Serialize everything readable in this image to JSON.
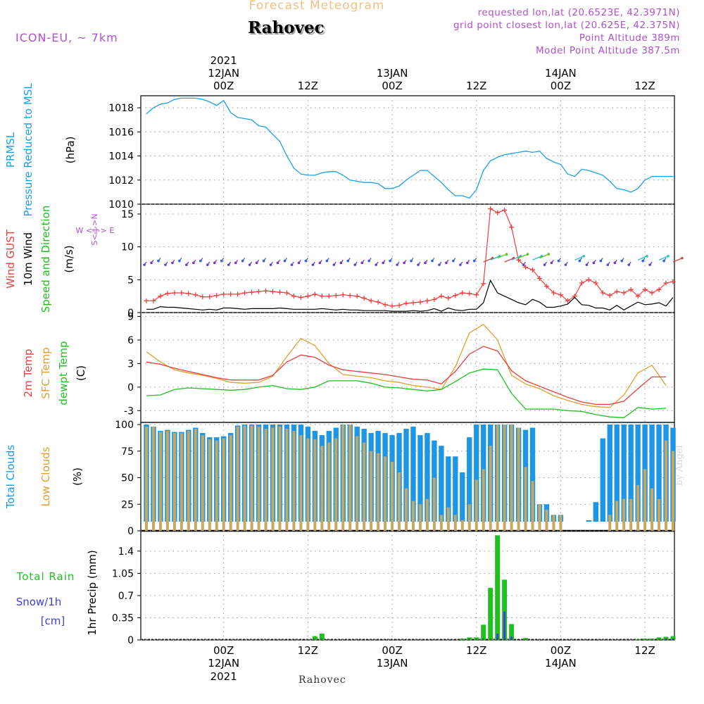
{
  "header": {
    "title": "Forecast Meteogram",
    "location": "Rahovec",
    "model": "ICON-EU, ~ 7km",
    "requested": "requested lon,lat (20.6523E, 42.3971N)",
    "gridpoint": "grid point closest lon,lat (20.625E, 42.375N)",
    "point_alt": "Point Altitude 389m",
    "model_alt": "Model Point Altitude 387.5m",
    "footer_location": "Rahovec",
    "credit": "by Angel"
  },
  "time_axis": {
    "ticks": [
      {
        "hour": 0,
        "label": "00Z",
        "day": "12JAN",
        "year": "2021"
      },
      {
        "hour": 12,
        "label": "12Z",
        "day": "",
        "year": ""
      },
      {
        "hour": 24,
        "label": "00Z",
        "day": "13JAN",
        "year": ""
      },
      {
        "hour": 36,
        "label": "12Z",
        "day": "",
        "year": ""
      },
      {
        "hour": 48,
        "label": "00Z",
        "day": "14JAN",
        "year": ""
      },
      {
        "hour": 60,
        "label": "12Z",
        "day": "",
        "year": ""
      }
    ]
  },
  "colors": {
    "pressure": "#1ea0e6",
    "gust": "#ee4040",
    "wind": "#000000",
    "temp2m": "#e84040",
    "sfc": "#e0a030",
    "dewpt": "#20c020",
    "total_clouds": "#1e96e6",
    "low_clouds": "#c8a860",
    "rain": "#20c020",
    "snow": "#4040e0",
    "header_purple": "#b050d0",
    "header_title": "#f0c080"
  },
  "chart_data": [
    {
      "type": "line",
      "title": "",
      "ylabel": [
        "PRMSL",
        "Pressure Reduced to MSL",
        "(hPa)"
      ],
      "yticks": [
        1010,
        1012,
        1014,
        1016,
        1018
      ],
      "ylim": [
        1010,
        1019
      ],
      "series": [
        {
          "name": "PRMSL",
          "x": [
            -11,
            -10,
            -9,
            -8,
            -7,
            -6,
            -5,
            -4,
            -3,
            -2,
            -1,
            0,
            1,
            2,
            3,
            4,
            5,
            6,
            7,
            8,
            9,
            10,
            11,
            12,
            13,
            14,
            15,
            16,
            17,
            18,
            19,
            20,
            21,
            22,
            23,
            24,
            25,
            26,
            27,
            28,
            29,
            30,
            31,
            32,
            33,
            34,
            35,
            36,
            37,
            38,
            39,
            40,
            41,
            42,
            43,
            44,
            45,
            46,
            47,
            48,
            49,
            50,
            51,
            52,
            53,
            54,
            55,
            56,
            57,
            58,
            59,
            60,
            61,
            62,
            63,
            64
          ],
          "values": [
            1017.5,
            1018.0,
            1018.3,
            1018.4,
            1018.7,
            1018.8,
            1018.8,
            1018.8,
            1018.7,
            1018.5,
            1018.2,
            1018.6,
            1017.6,
            1017.2,
            1017.1,
            1017.0,
            1016.5,
            1016.4,
            1015.8,
            1015.2,
            1014.0,
            1013.0,
            1012.5,
            1012.4,
            1012.4,
            1012.6,
            1012.7,
            1012.7,
            1012.4,
            1012.0,
            1011.9,
            1011.8,
            1011.8,
            1011.7,
            1011.3,
            1011.3,
            1011.5,
            1012.0,
            1012.4,
            1012.8,
            1012.8,
            1012.3,
            1011.8,
            1011.2,
            1010.7,
            1010.7,
            1010.5,
            1011.2,
            1012.8,
            1013.6,
            1013.9,
            1014.1,
            1014.2,
            1014.3,
            1014.4,
            1014.3,
            1014.4,
            1013.8,
            1013.5,
            1013.3,
            1012.5,
            1012.3,
            1012.9,
            1012.8,
            1012.6,
            1012.4,
            1011.9,
            1011.3,
            1011.2,
            1011.0,
            1011.3,
            1012.0,
            1012.3,
            1012.3,
            1012.3,
            1012.3
          ]
        }
      ]
    },
    {
      "type": "line",
      "title": "",
      "ylabel": [
        "Wind GUST",
        "10m Wind",
        "Speed and Direction",
        "(m/s)"
      ],
      "compass": "W <-|-> E   S<-|->N",
      "yticks": [
        0,
        5,
        10,
        15
      ],
      "ylim": [
        0,
        16.5
      ],
      "series": [
        {
          "name": "Wind GUST",
          "x": [
            -11,
            -10,
            -9,
            -8,
            -7,
            -6,
            -5,
            -4,
            -3,
            -2,
            -1,
            0,
            1,
            2,
            3,
            4,
            5,
            6,
            7,
            8,
            9,
            10,
            11,
            12,
            13,
            14,
            15,
            16,
            17,
            18,
            19,
            20,
            21,
            22,
            23,
            24,
            25,
            26,
            27,
            28,
            29,
            30,
            31,
            32,
            33,
            34,
            35,
            36,
            37,
            38,
            39,
            40,
            41,
            42,
            43,
            44,
            45,
            46,
            47,
            48,
            49,
            50,
            51,
            52,
            53,
            54,
            55,
            56,
            57,
            58,
            59,
            60,
            61,
            62,
            63,
            64
          ],
          "values": [
            1.8,
            1.8,
            2.5,
            2.9,
            3.0,
            3.0,
            2.9,
            2.7,
            2.4,
            2.4,
            2.6,
            2.8,
            2.8,
            2.8,
            3.0,
            3.1,
            3.2,
            3.3,
            3.2,
            3.1,
            3.0,
            2.5,
            2.3,
            2.5,
            2.8,
            2.5,
            2.5,
            2.6,
            2.7,
            2.6,
            2.5,
            2.2,
            1.8,
            1.6,
            1.2,
            1.0,
            1.1,
            1.4,
            1.5,
            1.6,
            1.8,
            2.0,
            2.5,
            2.2,
            2.6,
            3.0,
            2.9,
            2.7,
            4.4,
            15.8,
            15.2,
            15.6,
            13.0,
            8.0,
            6.9,
            6.5,
            5.2,
            4.0,
            3.0,
            2.7,
            1.8,
            2.5,
            4.5,
            5.0,
            4.5,
            3.0,
            2.6,
            3.2,
            3.0,
            3.5,
            2.5,
            3.5,
            3.0,
            3.5,
            4.5,
            4.7
          ]
        },
        {
          "name": "10m Wind",
          "x": [
            -11,
            -10,
            -9,
            -8,
            -7,
            -6,
            -5,
            -4,
            -3,
            -2,
            -1,
            0,
            1,
            2,
            3,
            4,
            5,
            6,
            7,
            8,
            9,
            10,
            11,
            12,
            13,
            14,
            15,
            16,
            17,
            18,
            19,
            20,
            21,
            22,
            23,
            24,
            25,
            26,
            27,
            28,
            29,
            30,
            31,
            32,
            33,
            34,
            35,
            36,
            37,
            38,
            39,
            40,
            41,
            42,
            43,
            44,
            45,
            46,
            47,
            48,
            49,
            50,
            51,
            52,
            53,
            54,
            55,
            56,
            57,
            58,
            59,
            60,
            61,
            62,
            63,
            64
          ],
          "values": [
            0.5,
            0.5,
            0.9,
            0.8,
            0.8,
            0.7,
            0.6,
            0.5,
            0.4,
            0.5,
            0.4,
            0.7,
            0.7,
            0.6,
            0.5,
            0.6,
            0.6,
            0.6,
            0.6,
            0.7,
            0.6,
            0.5,
            0.5,
            0.5,
            0.5,
            0.6,
            0.5,
            0.4,
            0.5,
            0.4,
            0.4,
            0.3,
            0.3,
            0.3,
            0.3,
            0.2,
            0.2,
            0.2,
            0.3,
            0.2,
            0.3,
            0.6,
            0.2,
            0.7,
            0.4,
            0.3,
            0.5,
            0.5,
            1.5,
            4.9,
            3.0,
            2.5,
            2.0,
            1.5,
            1.2,
            2.0,
            1.6,
            0.8,
            0.8,
            1.0,
            1.3,
            2.3,
            1.2,
            1.1,
            0.7,
            0.7,
            0.4,
            1.1,
            0.4,
            1.0,
            1.6,
            1.2,
            1.3,
            1.5,
            1.0,
            2.3
          ]
        }
      ]
    },
    {
      "type": "line",
      "title": "",
      "ylabel": [
        "2m Temp",
        "SFC Temp",
        "dewpt Temp",
        "(C)"
      ],
      "yticks": [
        -3,
        0,
        3,
        6,
        9
      ],
      "ylim": [
        -4.5,
        9.5
      ],
      "series": [
        {
          "name": "2m Temp",
          "x": [
            -11,
            -9,
            -7,
            -5,
            -3,
            -1,
            1,
            3,
            5,
            7,
            9,
            11,
            13,
            15,
            17,
            19,
            21,
            23,
            25,
            27,
            29,
            31,
            33,
            35,
            37,
            39,
            41,
            43,
            45,
            47,
            49,
            51,
            53,
            55,
            57,
            59,
            61,
            63
          ],
          "values": [
            3.2,
            2.9,
            2.4,
            2.0,
            1.6,
            1.2,
            0.9,
            0.9,
            0.9,
            1.5,
            3.2,
            4.1,
            3.8,
            2.8,
            2.2,
            2.0,
            1.8,
            1.6,
            1.3,
            1.0,
            0.9,
            0.4,
            2.0,
            4.2,
            5.2,
            4.6,
            2.1,
            0.8,
            0.1,
            -0.6,
            -1.3,
            -1.9,
            -2.2,
            -2.2,
            -1.8,
            -0.2,
            1.3,
            1.3
          ]
        },
        {
          "name": "SFC Temp",
          "x": [
            -11,
            -9,
            -7,
            -5,
            -3,
            -1,
            1,
            3,
            5,
            7,
            9,
            11,
            13,
            15,
            17,
            19,
            21,
            23,
            25,
            27,
            29,
            31,
            33,
            35,
            37,
            39,
            41,
            43,
            45,
            47,
            49,
            51,
            53,
            55,
            57,
            59,
            61,
            63
          ],
          "values": [
            4.5,
            3.2,
            2.2,
            1.8,
            1.5,
            1.1,
            0.6,
            0.5,
            0.6,
            1.4,
            3.9,
            6.2,
            5.3,
            3.0,
            1.6,
            1.4,
            1.2,
            0.8,
            0.6,
            0.2,
            0.0,
            -0.3,
            2.6,
            6.9,
            8.0,
            6.0,
            1.5,
            0.4,
            -0.2,
            -1.1,
            -1.7,
            -2.2,
            -2.5,
            -2.6,
            -1.0,
            1.8,
            2.8,
            0.2
          ]
        },
        {
          "name": "dewpt Temp",
          "x": [
            -11,
            -9,
            -7,
            -5,
            -3,
            -1,
            1,
            3,
            5,
            7,
            9,
            11,
            13,
            15,
            17,
            19,
            21,
            23,
            25,
            27,
            29,
            31,
            33,
            35,
            37,
            39,
            41,
            43,
            45,
            47,
            49,
            51,
            53,
            55,
            57,
            59,
            61,
            63
          ],
          "values": [
            -1.1,
            -1.0,
            -0.3,
            -0.1,
            -0.2,
            -0.3,
            -0.4,
            -0.3,
            0.0,
            0.2,
            -0.2,
            -0.3,
            0.0,
            0.8,
            0.8,
            0.8,
            0.5,
            0.0,
            -0.1,
            -0.3,
            -0.5,
            -0.3,
            0.7,
            1.8,
            2.3,
            2.2,
            -0.8,
            -2.8,
            -2.8,
            -2.8,
            -3.0,
            -3.1,
            -3.5,
            -3.8,
            -3.9,
            -2.6,
            -2.8,
            -2.7
          ]
        }
      ]
    },
    {
      "type": "bar",
      "title": "",
      "ylabel": [
        "Total Clouds",
        "Low Clouds",
        "(%)"
      ],
      "yticks": [
        0,
        25,
        50,
        75,
        100
      ],
      "ylim": [
        0,
        102
      ],
      "x": [
        -11,
        -10,
        -9,
        -8,
        -7,
        -6,
        -5,
        -4,
        -3,
        -2,
        -1,
        0,
        1,
        2,
        3,
        4,
        5,
        6,
        7,
        8,
        9,
        10,
        11,
        12,
        13,
        14,
        15,
        16,
        17,
        18,
        19,
        20,
        21,
        22,
        23,
        24,
        25,
        26,
        27,
        28,
        29,
        30,
        31,
        32,
        33,
        34,
        35,
        36,
        37,
        38,
        39,
        40,
        41,
        42,
        43,
        44,
        45,
        46,
        47,
        48,
        49,
        50,
        51,
        52,
        53,
        54,
        55,
        56,
        57,
        58,
        59,
        60,
        61,
        62,
        63,
        64
      ],
      "series": [
        {
          "name": "Total Clouds",
          "values": [
            100,
            98,
            94,
            95,
            93,
            93,
            95,
            97,
            92,
            88,
            88,
            89,
            92,
            99,
            100,
            100,
            100,
            100,
            100,
            100,
            100,
            100,
            100,
            98,
            94,
            90,
            94,
            97,
            100,
            100,
            98,
            96,
            92,
            94,
            92,
            90,
            92,
            96,
            98,
            90,
            92,
            85,
            80,
            70,
            70,
            55,
            88,
            100,
            100,
            100,
            100,
            100,
            100,
            97,
            95,
            97,
            25,
            25,
            15,
            15,
            0,
            0,
            0,
            10,
            27,
            87,
            100,
            100,
            100,
            100,
            100,
            100,
            100,
            100,
            100,
            97
          ]
        },
        {
          "name": "Low Clouds",
          "values": [
            98,
            98,
            93,
            94,
            92,
            92,
            94,
            96,
            90,
            86,
            85,
            87,
            90,
            98,
            99,
            99,
            98,
            96,
            97,
            98,
            96,
            94,
            90,
            87,
            86,
            80,
            83,
            87,
            100,
            100,
            89,
            83,
            75,
            73,
            70,
            65,
            55,
            40,
            28,
            25,
            30,
            50,
            15,
            22,
            15,
            10,
            25,
            48,
            58,
            80,
            100,
            100,
            100,
            97,
            60,
            47,
            25,
            20,
            15,
            15,
            0,
            0,
            0,
            0,
            0,
            0,
            15,
            28,
            30,
            30,
            43,
            58,
            40,
            30,
            85,
            75
          ]
        }
      ]
    },
    {
      "type": "bar",
      "title": "",
      "ylabel": [
        "Total Rain",
        "Snow/1h",
        "[cm]",
        "1hr Precip (mm)"
      ],
      "yticks": [
        "0",
        "0.35",
        "0.7",
        "1.05",
        "1.4"
      ],
      "ylim": [
        0,
        1.72
      ],
      "x": [
        13,
        14,
        34,
        35,
        36,
        37,
        38,
        39,
        40,
        41,
        43,
        59,
        60,
        61,
        62,
        63,
        64
      ],
      "series": [
        {
          "name": "Total Rain",
          "values": [
            0.06,
            0.1,
            0.02,
            0.04,
            0.04,
            0.24,
            0.82,
            1.65,
            0.95,
            0.25,
            0.03,
            0.01,
            0.02,
            0.02,
            0.04,
            0.05,
            0.06
          ]
        },
        {
          "name": "Snow/1h",
          "values": [
            0,
            0,
            0,
            0,
            0,
            0,
            0,
            0.1,
            0.45,
            0.05,
            0,
            0,
            0,
            0,
            0,
            0.02,
            0.02
          ]
        }
      ]
    }
  ]
}
